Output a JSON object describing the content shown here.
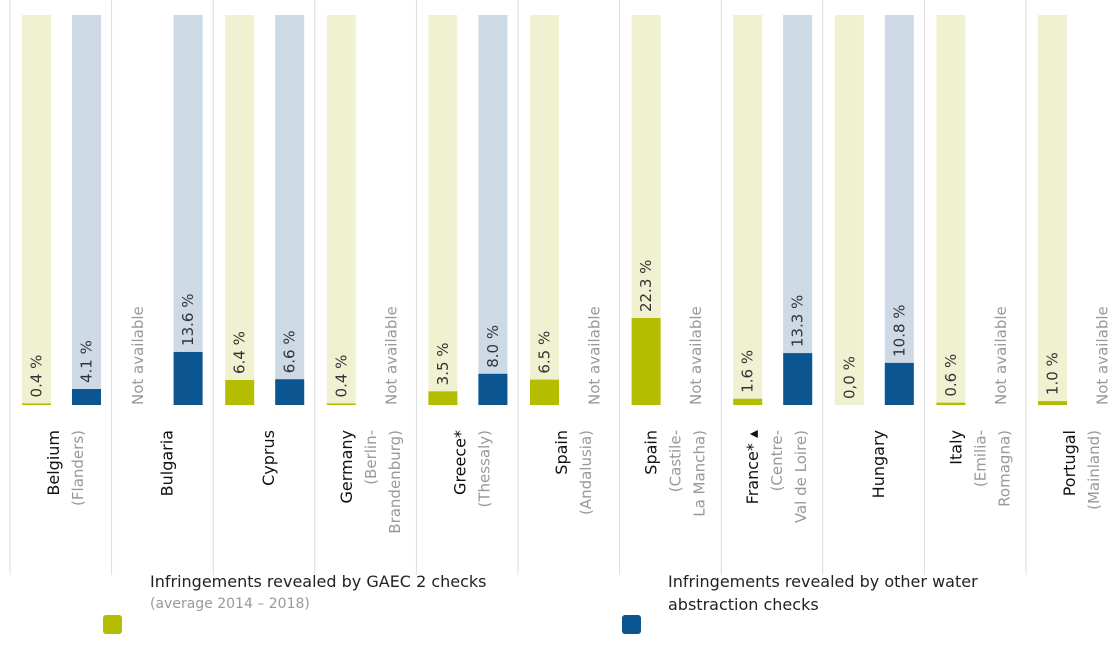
{
  "chart_data": {
    "type": "bar",
    "categories": [
      "Belgium",
      "Bulgaria",
      "Cyprus",
      "Germany",
      "Greece*",
      "Spain",
      "Spain",
      "France* ▴",
      "Hungary",
      "Italy",
      "Portugal"
    ],
    "regions": [
      [
        "(Flanders)"
      ],
      null,
      null,
      [
        "(Berlin-",
        "Brandenburg)"
      ],
      [
        "(Thessaly)"
      ],
      [
        "(Andalusia)"
      ],
      [
        "(Castile-",
        "La Mancha)"
      ],
      [
        "(Centre-",
        "Val de Loire)"
      ],
      null,
      [
        "(Emilia-",
        "Romagna)"
      ],
      [
        "(Mainland)"
      ]
    ],
    "ylim": [
      0,
      100
    ],
    "series": [
      {
        "name": "Infringements revealed by GAEC 2 checks",
        "note": "(average 2014 – 2018)",
        "color": "#b5bd00",
        "track_color": "#eff1d0",
        "values": [
          0.4,
          null,
          6.4,
          0.4,
          3.5,
          6.5,
          22.3,
          1.6,
          0.0,
          0.6,
          1.0
        ],
        "value_labels": [
          "0.4 %",
          "Not available",
          "6.4 %",
          "0.4 %",
          "3.5 %",
          "6.5 %",
          "22.3 %",
          "1.6 %",
          "0,0 %",
          "0.6 %",
          "1.0 %"
        ]
      },
      {
        "name": "Infringements revealed by other water abstraction checks",
        "color": "#0b5591",
        "track_color": "#cdd9e5",
        "values": [
          4.1,
          13.6,
          6.6,
          null,
          8.0,
          null,
          null,
          13.3,
          10.8,
          null,
          null
        ],
        "value_labels": [
          "4.1 %",
          "13.6 %",
          "6.6 %",
          "Not available",
          "8.0 %",
          "Not available",
          "Not available",
          "13.3 %",
          "10.8 %",
          "Not available",
          "Not available"
        ]
      }
    ]
  }
}
